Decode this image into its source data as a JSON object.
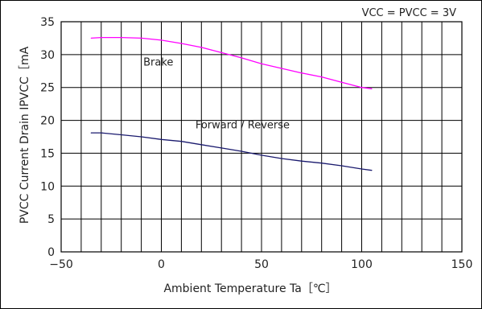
{
  "chart_data": {
    "type": "line",
    "condition": "VCC = PVCC =  3V",
    "xlabel": "Ambient Temperature Ta［℃］",
    "ylabel": "PVCC Current Drain IPVCC［mA",
    "xlim": [
      -50,
      150
    ],
    "ylim": [
      0,
      35
    ],
    "x_ticks": [
      -50,
      0,
      50,
      100,
      150
    ],
    "x_tick_labels": [
      "−50",
      "0",
      "50",
      "100",
      "150"
    ],
    "y_ticks": [
      0,
      5,
      10,
      15,
      20,
      25,
      30,
      35
    ],
    "y_tick_labels": [
      "0",
      "5",
      "10",
      "15",
      "20",
      "25",
      "30",
      "35"
    ],
    "x_minor_step": 10,
    "y_minor_step": 5,
    "grid": true,
    "series": [
      {
        "name": "Brake",
        "color": "#ff00ff",
        "label_at": [
          -9,
          28.3
        ],
        "x": [
          -35,
          -30,
          -20,
          -10,
          0,
          10,
          20,
          25,
          30,
          40,
          50,
          60,
          70,
          80,
          90,
          100,
          105
        ],
        "y": [
          32.5,
          32.6,
          32.6,
          32.5,
          32.2,
          31.7,
          31.1,
          30.7,
          30.3,
          29.5,
          28.6,
          27.9,
          27.2,
          26.6,
          25.8,
          25.0,
          24.8
        ]
      },
      {
        "name": "Forward / Reverse",
        "color": "#1a1a6e",
        "label_at": [
          17,
          18.8
        ],
        "x": [
          -35,
          -30,
          -20,
          -10,
          0,
          10,
          20,
          30,
          40,
          50,
          60,
          70,
          80,
          90,
          100,
          105
        ],
        "y": [
          18.1,
          18.1,
          17.8,
          17.5,
          17.1,
          16.8,
          16.3,
          15.8,
          15.3,
          14.7,
          14.2,
          13.8,
          13.5,
          13.1,
          12.6,
          12.4
        ]
      }
    ]
  }
}
